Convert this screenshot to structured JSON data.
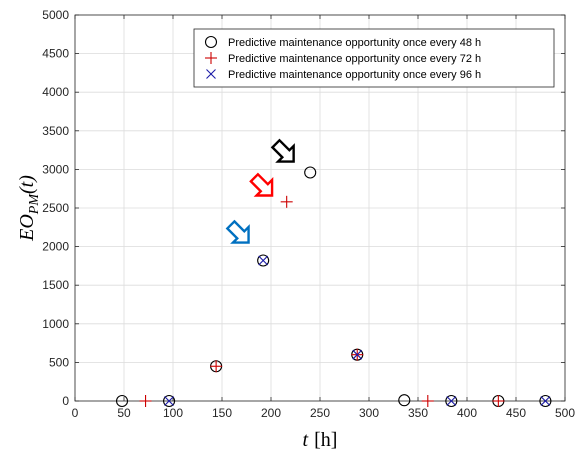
{
  "chart_data": {
    "type": "scatter",
    "xlabel": {
      "main": "t",
      "unit": "[h]"
    },
    "ylabel": {
      "main": "EO",
      "sub": "PM",
      "tail": "(t)"
    },
    "xlim": [
      0,
      500
    ],
    "ylim": [
      0,
      5000
    ],
    "xticks": [
      "0",
      "50",
      "100",
      "150",
      "200",
      "250",
      "300",
      "350",
      "400",
      "450",
      "500"
    ],
    "yticks": [
      "0",
      "500",
      "1000",
      "1500",
      "2000",
      "2500",
      "3000",
      "3500",
      "4000",
      "4500",
      "5000"
    ],
    "grid": true,
    "legend_position": "top-right",
    "series": [
      {
        "name": "Predictive maintenance opportunity once every 48 h",
        "marker": "circle",
        "color": "#000000",
        "x": [
          48,
          96,
          144,
          192,
          240,
          288,
          336,
          384,
          432,
          480
        ],
        "y": [
          0,
          0,
          450,
          1820,
          2960,
          600,
          10,
          0,
          0,
          0
        ]
      },
      {
        "name": "Predictive maintenance opportunity once every 72 h",
        "marker": "plus",
        "color": "#cc0000",
        "x": [
          72,
          144,
          216,
          288,
          360,
          432
        ],
        "y": [
          0,
          450,
          2580,
          600,
          0,
          0
        ]
      },
      {
        "name": "Predictive maintenance opportunity once every 96 h",
        "marker": "cross",
        "color": "#1a1aa6",
        "x": [
          96,
          192,
          288,
          384,
          480
        ],
        "y": [
          0,
          1820,
          600,
          0,
          0
        ]
      }
    ],
    "annotations": [
      {
        "kind": "arrow",
        "color": "#000000",
        "x": 213,
        "y": 3230
      },
      {
        "kind": "arrow",
        "color": "#ff0000",
        "x": 191,
        "y": 2790
      },
      {
        "kind": "arrow",
        "color": "#0070c0",
        "x": 167,
        "y": 2180
      }
    ]
  }
}
